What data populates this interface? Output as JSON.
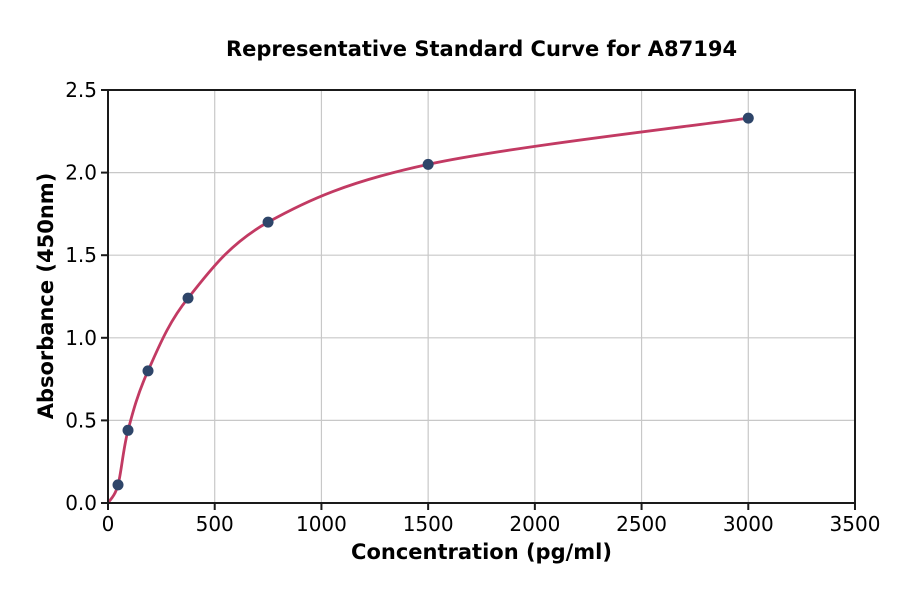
{
  "chart_data": {
    "type": "scatter",
    "title": "Representative Standard Curve for A87194",
    "xlabel": "Concentration (pg/ml)",
    "ylabel": "Absorbance (450nm)",
    "xlim": [
      0,
      3500
    ],
    "ylim": [
      0,
      2.5
    ],
    "x_ticks": [
      0,
      500,
      1000,
      1500,
      2000,
      2500,
      3000,
      3500
    ],
    "x_tick_labels": [
      "0",
      "500",
      "1000",
      "1500",
      "2000",
      "2500",
      "3000",
      "3500"
    ],
    "y_ticks": [
      0.0,
      0.5,
      1.0,
      1.5,
      2.0,
      2.5
    ],
    "y_tick_labels": [
      "0.0",
      "0.5",
      "1.0",
      "1.5",
      "2.0",
      "2.5"
    ],
    "grid": true,
    "legend": "none",
    "series": [
      {
        "name": "fit-curve",
        "type": "line",
        "smooth": true,
        "x": [
          0,
          46.9,
          93.8,
          187.5,
          375,
          750,
          1500,
          3000
        ],
        "y": [
          0.0,
          0.11,
          0.44,
          0.8,
          1.24,
          1.7,
          2.05,
          2.33
        ],
        "color": "#c23a63",
        "width": 2.8
      },
      {
        "name": "standard-points",
        "type": "scatter",
        "marker": "circle",
        "x": [
          46.9,
          93.8,
          187.5,
          375,
          750,
          1500,
          3000
        ],
        "y": [
          0.11,
          0.44,
          0.8,
          1.24,
          1.7,
          2.05,
          2.33
        ],
        "color": "#2e4569",
        "radius": 5.5
      }
    ],
    "colors": {
      "grid": "#c8c8c8",
      "axis": "#1a1a1a",
      "text": "#000000",
      "background": "#ffffff"
    }
  }
}
